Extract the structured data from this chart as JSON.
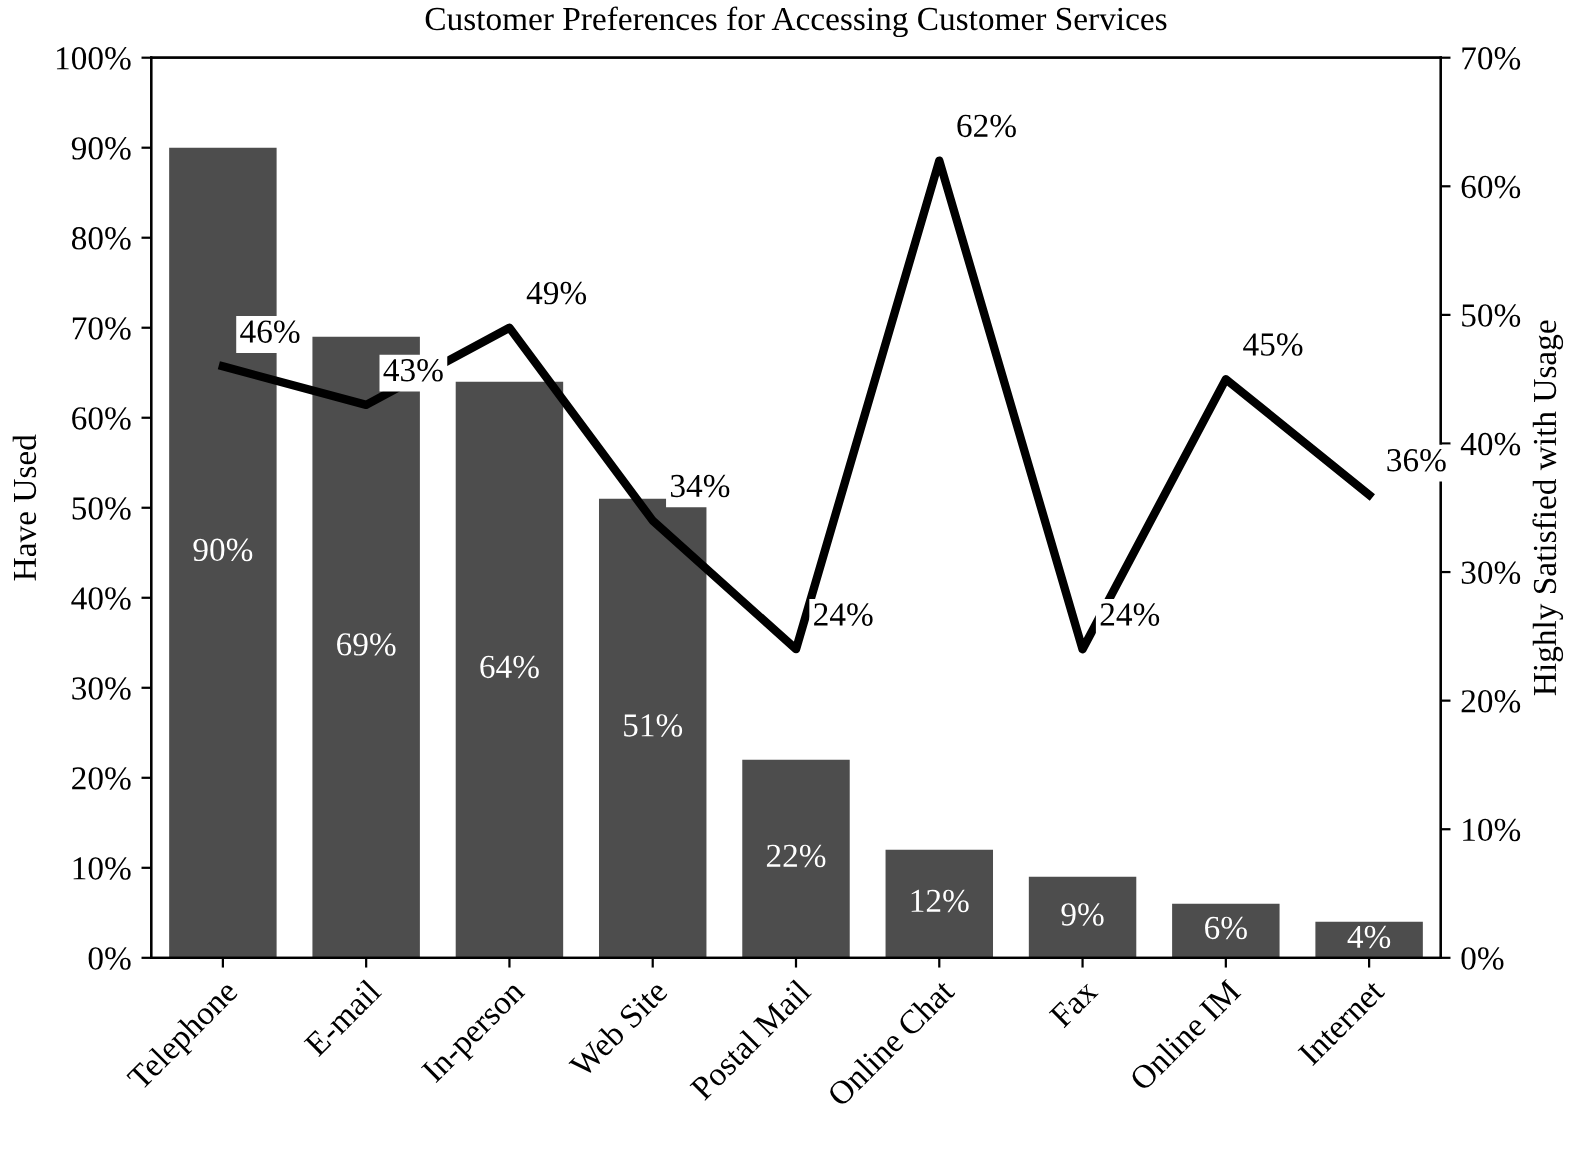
{
  "chart_data": {
    "type": "bar",
    "title": "Customer Preferences for Accessing Customer Services",
    "ylabel": "Have Used",
    "y2label": "Highly Satisfied with Usage",
    "categories": [
      "Telephone",
      "E-mail",
      "In-person",
      "Web Site",
      "Postal Mail",
      "Online Chat",
      "Fax",
      "Online IM",
      "Internet"
    ],
    "series": [
      {
        "color": "#4d4d4d",
        "values": [
          90,
          69,
          64,
          51,
          22,
          12,
          9,
          6,
          4
        ],
        "value_labels": [
          "90%",
          "69%",
          "64%",
          "51%",
          "22%",
          "12%",
          "9%",
          "6%",
          "4%"
        ]
      },
      {
        "type": "line",
        "axis": "y2",
        "color": "#000000",
        "values": [
          46,
          43,
          49,
          34,
          24,
          62,
          24,
          45,
          36
        ],
        "value_labels": [
          "46%",
          "43%",
          "49%",
          "34%",
          "24%",
          "62%",
          "24%",
          "45%",
          "36%"
        ]
      }
    ],
    "ylim": [
      0,
      100
    ],
    "yticks": [
      {
        "value": 0,
        "label": "0%"
      },
      {
        "value": 10,
        "label": "10%"
      },
      {
        "value": 20,
        "label": "20%"
      },
      {
        "value": 30,
        "label": "30%"
      },
      {
        "value": 40,
        "label": "40%"
      },
      {
        "value": 50,
        "label": "50%"
      },
      {
        "value": 60,
        "label": "60%"
      },
      {
        "value": 70,
        "label": "70%"
      },
      {
        "value": 80,
        "label": "80%"
      },
      {
        "value": 90,
        "label": "90%"
      },
      {
        "value": 100,
        "label": "100%"
      }
    ],
    "y2lim": [
      0,
      70
    ],
    "y2ticks": [
      {
        "value": 0,
        "label": "0%"
      },
      {
        "value": 10,
        "label": "10%"
      },
      {
        "value": 20,
        "label": "20%"
      },
      {
        "value": 30,
        "label": "30%"
      },
      {
        "value": 40,
        "label": "40%"
      },
      {
        "value": 50,
        "label": "50%"
      },
      {
        "value": 60,
        "label": "60%"
      },
      {
        "value": 70,
        "label": "70%"
      }
    ]
  }
}
